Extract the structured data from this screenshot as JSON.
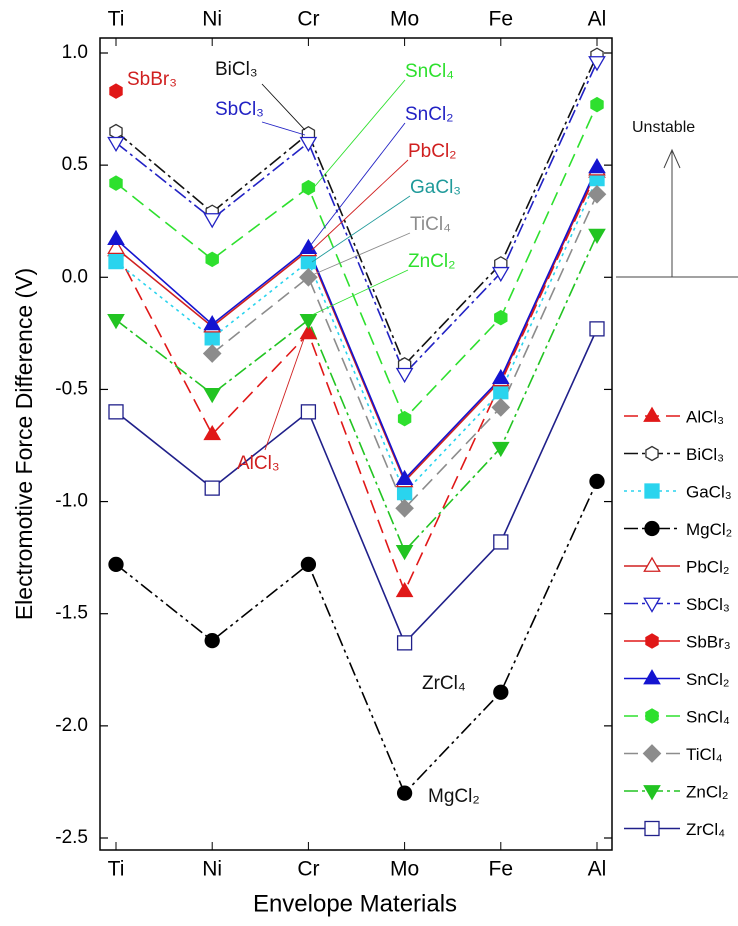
{
  "chart_data": {
    "type": "line",
    "xlabel": "Envelope Materials",
    "ylabel": "Electromotive Force Difference (V)",
    "categories": [
      "Ti",
      "Ni",
      "Cr",
      "Mo",
      "Fe",
      "Al"
    ],
    "ylim": [
      -2.5,
      1.0
    ],
    "yticks": [
      {
        "value": 1,
        "label": "1.0"
      },
      0.5,
      {
        "value": 0,
        "label": "0.0"
      },
      -0.5,
      {
        "value": -1,
        "label": "-1.0"
      },
      -1.5,
      {
        "value": -2,
        "label": "-2.0"
      },
      -2.5
    ],
    "grid": false,
    "legend": "right",
    "series": [
      {
        "name": "AlCl₃",
        "color": "#e01818",
        "marker": "triangle",
        "filled": true,
        "dash": "14,7",
        "values": [
          0.12,
          -0.7,
          -0.25,
          -1.4,
          -0.47,
          0.47
        ]
      },
      {
        "name": "BiCl₃",
        "color": "#111111",
        "marker": "hexagon",
        "filled": false,
        "dash": "14,4,3,4",
        "values": [
          0.65,
          0.29,
          0.64,
          -0.39,
          0.06,
          0.99
        ]
      },
      {
        "name": "GaCl₃",
        "color": "#2ad4ee",
        "marker": "square",
        "filled": true,
        "dash": "3,4",
        "values": [
          0.07,
          -0.27,
          0.07,
          -0.96,
          -0.51,
          0.44
        ]
      },
      {
        "name": "MgCl₂",
        "color": "#000000",
        "marker": "circle",
        "filled": true,
        "dash": "14,4,3,4,3,4",
        "values": [
          -1.28,
          -1.62,
          -1.28,
          -2.3,
          -1.85,
          -0.91
        ]
      },
      {
        "name": "PbCl₂",
        "color": "#d02020",
        "marker": "triangle",
        "filled": false,
        "dash": "",
        "values": [
          0.13,
          -0.22,
          0.12,
          -0.91,
          -0.46,
          0.48
        ]
      },
      {
        "name": "SbCl₃",
        "color": "#2222c4",
        "marker": "triangle-down",
        "filled": false,
        "dash": "14,4,3,4",
        "values": [
          0.6,
          0.26,
          0.6,
          -0.43,
          0.02,
          0.96
        ]
      },
      {
        "name": "SbBr₃",
        "color": "#e01818",
        "marker": "hexagon",
        "filled": true,
        "dash": "",
        "values": [
          0.83,
          null,
          null,
          null,
          null,
          null
        ]
      },
      {
        "name": "SnCl₂",
        "color": "#1414d0",
        "marker": "triangle",
        "filled": true,
        "dash": "",
        "values": [
          0.17,
          -0.21,
          0.13,
          -0.9,
          -0.45,
          0.49
        ]
      },
      {
        "name": "SnCl₄",
        "color": "#2ee02e",
        "marker": "hexagon",
        "filled": true,
        "dash": "14,7",
        "values": [
          0.42,
          0.08,
          0.4,
          -0.63,
          -0.18,
          0.77
        ]
      },
      {
        "name": "TiCl₄",
        "color": "#8c8c8c",
        "marker": "diamond",
        "filled": true,
        "dash": "14,7",
        "values": [
          null,
          -0.34,
          0.0,
          -1.03,
          -0.58,
          0.37
        ]
      },
      {
        "name": "ZnCl₂",
        "color": "#22c422",
        "marker": "triangle-down",
        "filled": true,
        "dash": "14,4,3,4",
        "values": [
          -0.19,
          -0.52,
          -0.19,
          -1.22,
          -0.76,
          0.19
        ]
      },
      {
        "name": "ZrCl₄",
        "color": "#20208a",
        "marker": "square",
        "filled": false,
        "dash": "",
        "values": [
          -0.6,
          -0.94,
          -0.6,
          -1.63,
          -1.18,
          -0.23
        ]
      }
    ],
    "annotations": [
      {
        "text": "SbBr₃",
        "color": "#d02020"
      },
      {
        "text": "BiCl₃",
        "color": "#111111"
      },
      {
        "text": "SbCl₃",
        "color": "#2222c4"
      },
      {
        "text": "SnCl₄",
        "color": "#2ee02e"
      },
      {
        "text": "SnCl₂",
        "color": "#2222c4"
      },
      {
        "text": "PbCl₂",
        "color": "#d02020"
      },
      {
        "text": "GaCl₃",
        "color": "#1f9a9a"
      },
      {
        "text": "TiCl₄",
        "color": "#8c8c8c"
      },
      {
        "text": "ZnCl₂",
        "color": "#2ee02e"
      },
      {
        "text": "AlCl₃",
        "color": "#d02020"
      },
      {
        "text": "ZrCl₄",
        "color": "#111111"
      },
      {
        "text": "MgCl₂",
        "color": "#111111"
      },
      {
        "text": "Unstable",
        "color": "#111111"
      }
    ]
  }
}
